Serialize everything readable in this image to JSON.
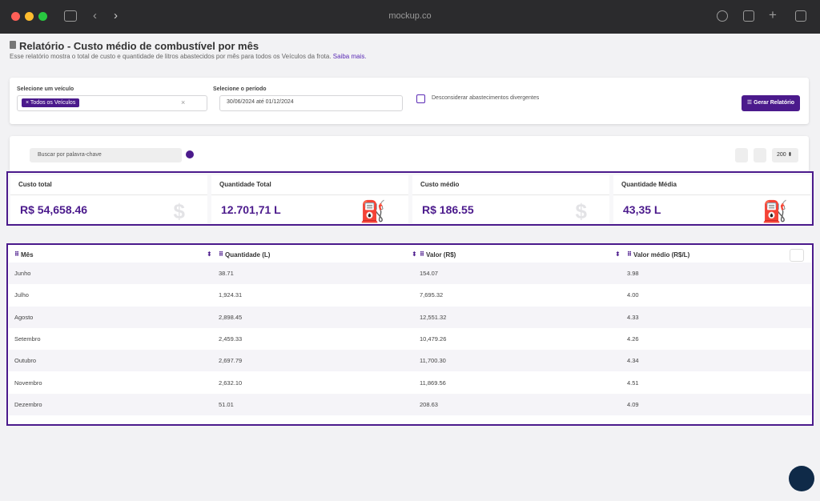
{
  "browser": {
    "url": "mockup.co"
  },
  "header": {
    "title": "Relatório - Custo médio de combustível por mês",
    "description": "Esse relatório mostra o total de custo e quantidade de litros abastecidos por mês para todos os Veículos da frota.",
    "link": "Saiba mais."
  },
  "filters": {
    "vehicle_label": "Selecione um veículo",
    "vehicle_chip": "Todos os Veículos",
    "period_label": "Selecione o período",
    "period_value": "30/06/2024 até 01/12/2024",
    "checkbox_label": "Desconsiderar abastecimentos divergentes",
    "button": "Gerar Relatório"
  },
  "toolbar": {
    "search_placeholder": "Buscar por palavra-chave",
    "page_size": "200"
  },
  "cards": [
    {
      "label": "Custo total",
      "value": "R$ 54,658.46",
      "icon": "$"
    },
    {
      "label": "Quantidade Total",
      "value": "12.701,71 L",
      "icon": "⛽"
    },
    {
      "label": "Custo médio",
      "value": "R$ 186.55",
      "icon": "$"
    },
    {
      "label": "Quantidade Média",
      "value": "43,35 L",
      "icon": "⛽"
    }
  ],
  "table": {
    "columns": [
      "Mês",
      "Quantidade (L)",
      "Valor (R$)",
      "Valor médio (R$/L)"
    ],
    "rows": [
      [
        "Junho",
        "38.71",
        "154.07",
        "3.98"
      ],
      [
        "Julho",
        "1,924.31",
        "7,695.32",
        "4.00"
      ],
      [
        "Agosto",
        "2,898.45",
        "12,551.32",
        "4.33"
      ],
      [
        "Setembro",
        "2,459.33",
        "10,479.26",
        "4.26"
      ],
      [
        "Outubro",
        "2,697.79",
        "11,700.30",
        "4.34"
      ],
      [
        "Novembro",
        "2,632.10",
        "11,869.56",
        "4.51"
      ],
      [
        "Dezembro",
        "51.01",
        "208.63",
        "4.09"
      ]
    ]
  }
}
